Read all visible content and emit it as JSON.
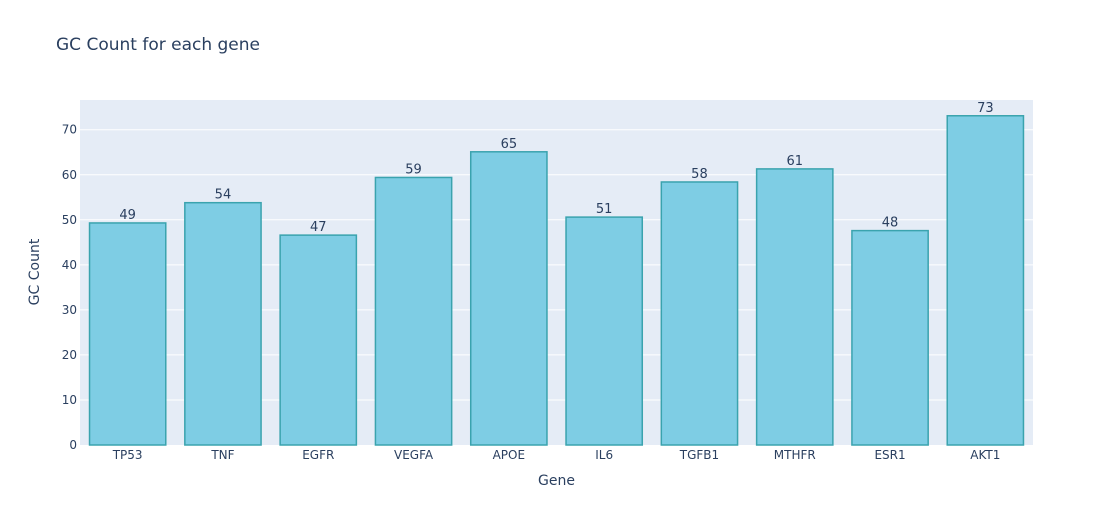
{
  "chart_data": {
    "type": "bar",
    "title": "GC Count for each gene",
    "xlabel": "Gene",
    "ylabel": "GC Count",
    "categories": [
      "TP53",
      "TNF",
      "EGFR",
      "VEGFA",
      "APOE",
      "IL6",
      "TGFB1",
      "MTHFR",
      "ESR1",
      "AKT1"
    ],
    "values": [
      49.3,
      53.8,
      46.6,
      59.4,
      65.1,
      50.6,
      58.4,
      61.3,
      47.6,
      73.1
    ],
    "data_labels": [
      "49",
      "54",
      "47",
      "59",
      "65",
      "51",
      "58",
      "61",
      "48",
      "73"
    ],
    "ylim": [
      0,
      76.6
    ],
    "yticks": [
      0,
      10,
      20,
      30,
      40,
      50,
      60,
      70
    ],
    "grid": true,
    "legend": "none",
    "colors": {
      "plot_bg": "#e5ecf6",
      "bar_fill": "#7ecde4",
      "bar_stroke": "#3aa3ae",
      "grid": "#ffffff",
      "text": "#2a3f5f"
    }
  }
}
